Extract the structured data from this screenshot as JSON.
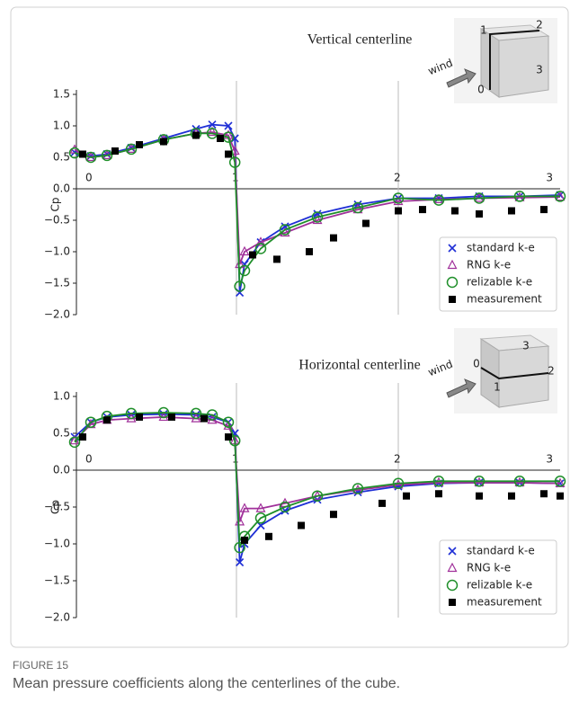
{
  "chart_data": [
    {
      "type": "line",
      "title": "Vertical centerline",
      "ylabel": "Cp",
      "xlim": [
        0,
        3
      ],
      "ylim": [
        -2,
        1.5
      ],
      "xticks": [
        0,
        1,
        2,
        3
      ],
      "yticks": [
        1.5,
        {
          "value": 1,
          "label": "1.0"
        },
        0.5,
        {
          "value": 0,
          "label": "0.0"
        },
        {
          "value": -0.5,
          "label": "−0.5"
        },
        {
          "value": -1,
          "label": "−1.0"
        },
        {
          "value": -1.5,
          "label": "−1.5"
        },
        {
          "value": -2,
          "label": "−2.0"
        }
      ],
      "grid": true,
      "legend": "lower right",
      "annotations": [
        "wind",
        "0",
        "1",
        "2",
        "3"
      ],
      "series": [
        {
          "name": "standard k-e",
          "color": "#1f2fd6",
          "marker": "x",
          "line": true,
          "x": [
            0,
            0.1,
            0.2,
            0.35,
            0.55,
            0.75,
            0.85,
            0.95,
            0.99,
            1.02,
            1.05,
            1.15,
            1.3,
            1.5,
            1.75,
            2.0,
            2.25,
            2.5,
            2.75,
            3.0
          ],
          "values": [
            0.58,
            0.52,
            0.55,
            0.65,
            0.8,
            0.95,
            1.02,
            1.0,
            0.8,
            -1.65,
            -1.2,
            -0.85,
            -0.6,
            -0.4,
            -0.25,
            -0.15,
            -0.15,
            -0.12,
            -0.12,
            -0.1
          ]
        },
        {
          "name": "RNG k-e",
          "color": "#a0309a",
          "marker": "triangle",
          "line": true,
          "x": [
            0,
            0.1,
            0.2,
            0.35,
            0.55,
            0.75,
            0.85,
            0.95,
            0.99,
            1.02,
            1.05,
            1.15,
            1.3,
            1.5,
            1.75,
            2.0,
            2.25,
            2.5,
            2.75,
            3.0
          ],
          "values": [
            0.62,
            0.5,
            0.53,
            0.63,
            0.78,
            0.88,
            0.9,
            0.85,
            0.6,
            -1.2,
            -1.0,
            -0.85,
            -0.7,
            -0.5,
            -0.33,
            -0.2,
            -0.17,
            -0.15,
            -0.14,
            -0.13
          ]
        },
        {
          "name": "relizable k-e",
          "color": "#1f8f2a",
          "marker": "circle",
          "line": true,
          "x": [
            0,
            0.1,
            0.2,
            0.35,
            0.55,
            0.75,
            0.85,
            0.95,
            0.99,
            1.02,
            1.05,
            1.15,
            1.3,
            1.5,
            1.75,
            2.0,
            2.25,
            2.5,
            2.75,
            3.0
          ],
          "values": [
            0.57,
            0.5,
            0.53,
            0.63,
            0.78,
            0.88,
            0.88,
            0.82,
            0.42,
            -1.55,
            -1.3,
            -0.95,
            -0.65,
            -0.45,
            -0.3,
            -0.15,
            -0.18,
            -0.15,
            -0.12,
            -0.12
          ]
        },
        {
          "name": "measurement",
          "color": "#000000",
          "marker": "square",
          "line": false,
          "x": [
            0.05,
            0.25,
            0.4,
            0.55,
            0.75,
            0.9,
            0.95,
            1.1,
            1.25,
            1.45,
            1.6,
            1.8,
            2.0,
            2.15,
            2.35,
            2.5,
            2.7,
            2.9
          ],
          "values": [
            0.55,
            0.6,
            0.7,
            0.75,
            0.85,
            0.8,
            0.55,
            -1.05,
            -1.12,
            -1.0,
            -0.78,
            -0.55,
            -0.35,
            -0.33,
            -0.35,
            -0.4,
            -0.35,
            -0.33
          ]
        }
      ]
    },
    {
      "type": "line",
      "title": "Horizontal centerline",
      "ylabel": "Cp",
      "xlim": [
        0,
        3
      ],
      "ylim": [
        -2,
        1
      ],
      "xticks": [
        0,
        1,
        2,
        3
      ],
      "yticks": [
        {
          "value": 1,
          "label": "1.0"
        },
        0.5,
        {
          "value": 0,
          "label": "0.0"
        },
        {
          "value": -0.5,
          "label": "−0.5"
        },
        {
          "value": -1,
          "label": "−1.0"
        },
        {
          "value": -1.5,
          "label": "−1.5"
        },
        {
          "value": -2,
          "label": "−2.0"
        }
      ],
      "grid": true,
      "legend": "lower right",
      "annotations": [
        "wind",
        "0",
        "1",
        "2",
        "3"
      ],
      "series": [
        {
          "name": "standard k-e",
          "color": "#1f2fd6",
          "marker": "x",
          "line": true,
          "x": [
            0,
            0.1,
            0.2,
            0.35,
            0.55,
            0.75,
            0.85,
            0.95,
            0.99,
            1.02,
            1.05,
            1.15,
            1.3,
            1.5,
            1.75,
            2.0,
            2.25,
            2.5,
            2.75,
            3.0
          ],
          "values": [
            0.45,
            0.65,
            0.72,
            0.75,
            0.76,
            0.75,
            0.72,
            0.65,
            0.5,
            -1.25,
            -1.0,
            -0.75,
            -0.55,
            -0.4,
            -0.3,
            -0.22,
            -0.18,
            -0.17,
            -0.17,
            -0.18
          ]
        },
        {
          "name": "RNG k-e",
          "color": "#a0309a",
          "marker": "triangle",
          "line": true,
          "x": [
            0,
            0.1,
            0.2,
            0.35,
            0.55,
            0.75,
            0.85,
            0.95,
            0.99,
            1.02,
            1.05,
            1.15,
            1.3,
            1.5,
            1.75,
            2.0,
            2.25,
            2.5,
            2.75,
            3.0
          ],
          "values": [
            0.4,
            0.62,
            0.68,
            0.7,
            0.72,
            0.7,
            0.68,
            0.6,
            0.4,
            -0.7,
            -0.52,
            -0.52,
            -0.45,
            -0.35,
            -0.27,
            -0.2,
            -0.17,
            -0.17,
            -0.17,
            -0.18
          ]
        },
        {
          "name": "relizable k-e",
          "color": "#1f8f2a",
          "marker": "circle",
          "line": true,
          "x": [
            0,
            0.1,
            0.2,
            0.35,
            0.55,
            0.75,
            0.85,
            0.95,
            0.99,
            1.02,
            1.05,
            1.15,
            1.3,
            1.5,
            1.75,
            2.0,
            2.25,
            2.5,
            2.75,
            3.0
          ],
          "values": [
            0.38,
            0.65,
            0.73,
            0.77,
            0.78,
            0.77,
            0.75,
            0.65,
            0.4,
            -1.05,
            -0.9,
            -0.65,
            -0.5,
            -0.35,
            -0.25,
            -0.18,
            -0.15,
            -0.15,
            -0.15,
            -0.15
          ]
        },
        {
          "name": "measurement",
          "color": "#000000",
          "marker": "square",
          "line": false,
          "x": [
            0.05,
            0.2,
            0.4,
            0.6,
            0.8,
            0.95,
            1.05,
            1.2,
            1.4,
            1.6,
            1.9,
            2.05,
            2.25,
            2.5,
            2.7,
            2.9,
            3.0
          ],
          "values": [
            0.45,
            0.68,
            0.72,
            0.72,
            0.7,
            0.45,
            -0.95,
            -0.9,
            -0.75,
            -0.6,
            -0.45,
            -0.35,
            -0.32,
            -0.35,
            -0.35,
            -0.32,
            -0.35
          ]
        }
      ]
    }
  ],
  "figure": {
    "label": "FIGURE 15",
    "caption": "Mean pressure coefficients along the centerlines of the cube."
  }
}
